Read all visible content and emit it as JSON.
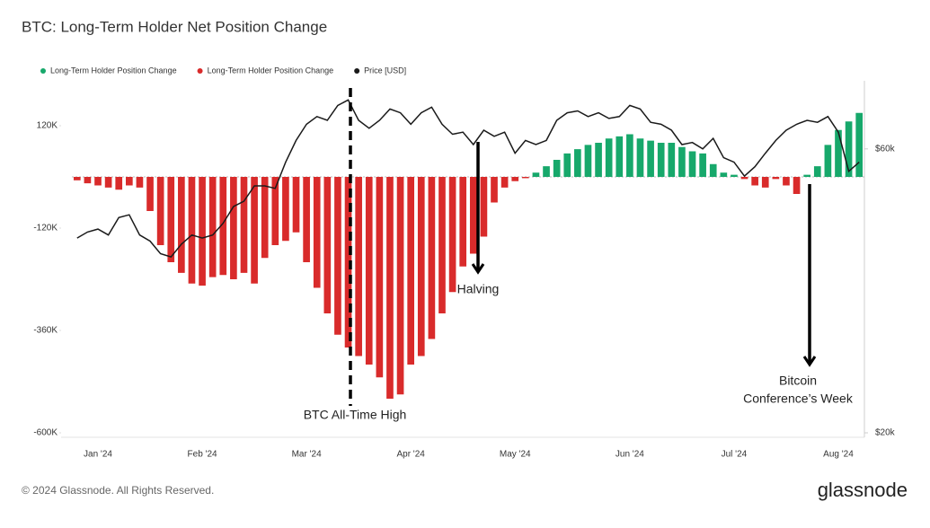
{
  "chart_data": {
    "type": "bar",
    "title": "BTC: Long-Term Holder Net Position Change",
    "categories": [
      null,
      null,
      "Jan '24",
      null,
      null,
      null,
      null,
      null,
      null,
      null,
      null,
      null,
      "Feb '24",
      null,
      null,
      null,
      null,
      null,
      null,
      null,
      null,
      null,
      "Mar '24",
      null,
      null,
      null,
      null,
      null,
      null,
      null,
      null,
      null,
      "Apr '24",
      null,
      null,
      null,
      null,
      null,
      null,
      null,
      null,
      null,
      "May '24",
      null,
      null,
      null,
      null,
      null,
      null,
      null,
      null,
      null,
      null,
      "Jun '24",
      null,
      null,
      null,
      null,
      null,
      null,
      null,
      null,
      null,
      "Jul '24",
      null,
      null,
      null,
      null,
      null,
      null,
      null,
      null,
      null,
      "Aug '24",
      null,
      null
    ],
    "series": [
      {
        "name": "Long-Term Holder Position Change",
        "color": "#17a86b",
        "values": [
          null,
          null,
          null,
          null,
          null,
          null,
          null,
          null,
          null,
          null,
          null,
          null,
          null,
          null,
          null,
          null,
          null,
          null,
          null,
          null,
          null,
          null,
          null,
          null,
          null,
          null,
          null,
          null,
          null,
          null,
          null,
          null,
          null,
          null,
          null,
          null,
          null,
          null,
          null,
          null,
          null,
          null,
          null,
          null,
          10000,
          25000,
          40000,
          55000,
          65000,
          75000,
          80000,
          90000,
          95000,
          100000,
          90000,
          85000,
          80000,
          80000,
          70000,
          60000,
          55000,
          30000,
          10000,
          5000,
          null,
          null,
          null,
          null,
          null,
          null,
          5000,
          25000,
          75000,
          110000,
          130000,
          150000
        ]
      },
      {
        "name": "Long-Term Holder Position Change",
        "color": "#d92b2b",
        "values": [
          -8000,
          -15000,
          -20000,
          -25000,
          -30000,
          -20000,
          -25000,
          -80000,
          -160000,
          -200000,
          -225000,
          -250000,
          -255000,
          -235000,
          -230000,
          -240000,
          -225000,
          -250000,
          -190000,
          -160000,
          -150000,
          -130000,
          -200000,
          -260000,
          -320000,
          -370000,
          -400000,
          -420000,
          -440000,
          -470000,
          -520000,
          -510000,
          -440000,
          -420000,
          -380000,
          -320000,
          -270000,
          -210000,
          -180000,
          -140000,
          -60000,
          -25000,
          -10000,
          -3000,
          null,
          null,
          null,
          null,
          null,
          null,
          null,
          null,
          null,
          null,
          null,
          null,
          null,
          null,
          null,
          null,
          null,
          null,
          null,
          null,
          -5000,
          -20000,
          -25000,
          -5000,
          -20000,
          -40000,
          null,
          null,
          null,
          null,
          null,
          null
        ]
      },
      {
        "name": "Price [USD]",
        "color": "#1a1a1a",
        "axis": "y2",
        "type": "line",
        "values": [
          42500,
          43500,
          44000,
          43000,
          46000,
          46500,
          43000,
          42000,
          40000,
          39500,
          41500,
          43000,
          42500,
          43000,
          45000,
          48000,
          49000,
          52000,
          52000,
          51500,
          57000,
          62000,
          66000,
          68000,
          67000,
          71000,
          72500,
          67000,
          65000,
          67000,
          70000,
          69000,
          66000,
          69000,
          70500,
          66000,
          63500,
          64000,
          61000,
          64500,
          63000,
          64000,
          59000,
          62000,
          61000,
          62000,
          67000,
          69000,
          69500,
          68000,
          69000,
          67500,
          68000,
          71000,
          70000,
          66500,
          66000,
          64500,
          61000,
          61500,
          60000,
          62500,
          58000,
          57000,
          54000,
          56000,
          59000,
          62000,
          64500,
          66000,
          67000,
          66500,
          68000,
          64000,
          55000,
          57000
        ]
      }
    ],
    "ylim": [
      -600000,
      240000
    ],
    "yticks": [
      {
        "value": 120000,
        "label": "120K"
      },
      {
        "value": -120000,
        "label": "-120K"
      },
      {
        "value": -360000,
        "label": "-360K"
      },
      {
        "value": -600000,
        "label": "-600K"
      }
    ],
    "y2lim": [
      20000,
      80000
    ],
    "y2scale": "log",
    "y2ticks": [
      {
        "value": 60000,
        "label": "$60k"
      },
      {
        "value": 20000,
        "label": "$20k"
      }
    ],
    "legend": "top-left",
    "annotations": [
      {
        "lines": [
          "BTC All-Time High"
        ]
      },
      {
        "lines": [
          "Halving"
        ]
      },
      {
        "lines": [
          "Bitcoin",
          "Conference’s Week"
        ]
      }
    ]
  },
  "footer": {
    "copyright": "© 2024 Glassnode. All Rights Reserved.",
    "logo": "glassnode"
  }
}
